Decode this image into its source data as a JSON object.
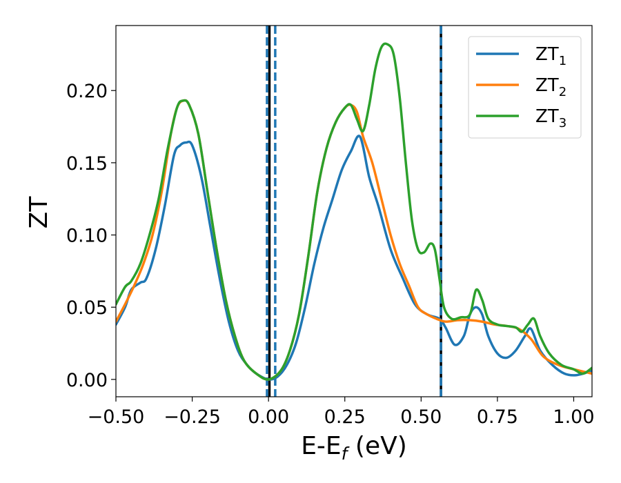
{
  "chart_data": {
    "type": "line",
    "title": "",
    "xlabel": {
      "main": "E-E",
      "sub": "f",
      "unit": " (eV)"
    },
    "ylabel": "ZT",
    "xlim": [
      -0.5,
      1.06
    ],
    "ylim": [
      -0.012,
      0.245
    ],
    "x_ticks": [
      -0.5,
      -0.25,
      0.0,
      0.25,
      0.5,
      0.75,
      1.0
    ],
    "x_tick_labels": [
      "−0.50",
      "−0.25",
      "0.00",
      "0.25",
      "0.50",
      "0.75",
      "1.00"
    ],
    "y_ticks": [
      0.0,
      0.05,
      0.1,
      0.15,
      0.2
    ],
    "y_tick_labels": [
      "0.00",
      "0.05",
      "0.10",
      "0.15",
      "0.20"
    ],
    "grid": false,
    "legend_position": "top-right",
    "series": [
      {
        "name": "ZT",
        "sub": "1",
        "color": "#1f77b4",
        "points": [
          [
            -0.5,
            0.038
          ],
          [
            -0.47,
            0.05
          ],
          [
            -0.45,
            0.062
          ],
          [
            -0.42,
            0.067
          ],
          [
            -0.4,
            0.07
          ],
          [
            -0.37,
            0.09
          ],
          [
            -0.34,
            0.12
          ],
          [
            -0.31,
            0.155
          ],
          [
            -0.29,
            0.162
          ],
          [
            -0.27,
            0.164
          ],
          [
            -0.25,
            0.162
          ],
          [
            -0.22,
            0.14
          ],
          [
            -0.19,
            0.105
          ],
          [
            -0.16,
            0.07
          ],
          [
            -0.13,
            0.04
          ],
          [
            -0.1,
            0.02
          ],
          [
            -0.07,
            0.01
          ],
          [
            -0.04,
            0.004
          ],
          [
            0.0,
            0.0
          ],
          [
            0.03,
            0.002
          ],
          [
            0.06,
            0.01
          ],
          [
            0.09,
            0.025
          ],
          [
            0.12,
            0.05
          ],
          [
            0.15,
            0.08
          ],
          [
            0.18,
            0.105
          ],
          [
            0.21,
            0.125
          ],
          [
            0.24,
            0.145
          ],
          [
            0.27,
            0.158
          ],
          [
            0.3,
            0.168
          ],
          [
            0.33,
            0.14
          ],
          [
            0.36,
            0.12
          ],
          [
            0.4,
            0.09
          ],
          [
            0.44,
            0.07
          ],
          [
            0.48,
            0.052
          ],
          [
            0.52,
            0.045
          ],
          [
            0.56,
            0.042
          ],
          [
            0.58,
            0.036
          ],
          [
            0.61,
            0.024
          ],
          [
            0.64,
            0.03
          ],
          [
            0.66,
            0.045
          ],
          [
            0.68,
            0.05
          ],
          [
            0.7,
            0.045
          ],
          [
            0.72,
            0.03
          ],
          [
            0.75,
            0.018
          ],
          [
            0.78,
            0.015
          ],
          [
            0.81,
            0.02
          ],
          [
            0.84,
            0.03
          ],
          [
            0.86,
            0.035
          ],
          [
            0.89,
            0.02
          ],
          [
            0.93,
            0.01
          ],
          [
            0.97,
            0.004
          ],
          [
            1.01,
            0.003
          ],
          [
            1.06,
            0.006
          ]
        ]
      },
      {
        "name": "ZT",
        "sub": "2",
        "color": "#ff7f0e",
        "points": [
          [
            -0.5,
            0.04
          ],
          [
            -0.47,
            0.052
          ],
          [
            -0.44,
            0.065
          ],
          [
            -0.41,
            0.08
          ],
          [
            -0.38,
            0.1
          ],
          [
            -0.35,
            0.13
          ],
          [
            -0.32,
            0.17
          ],
          [
            -0.3,
            0.188
          ],
          [
            -0.28,
            0.193
          ],
          [
            -0.26,
            0.19
          ],
          [
            -0.23,
            0.17
          ],
          [
            -0.2,
            0.13
          ],
          [
            -0.17,
            0.09
          ],
          [
            -0.14,
            0.055
          ],
          [
            -0.11,
            0.03
          ],
          [
            -0.08,
            0.013
          ],
          [
            -0.04,
            0.004
          ],
          [
            0.0,
            0.0
          ],
          [
            0.04,
            0.006
          ],
          [
            0.07,
            0.02
          ],
          [
            0.1,
            0.045
          ],
          [
            0.13,
            0.085
          ],
          [
            0.16,
            0.13
          ],
          [
            0.19,
            0.16
          ],
          [
            0.22,
            0.178
          ],
          [
            0.25,
            0.188
          ],
          [
            0.27,
            0.19
          ],
          [
            0.29,
            0.185
          ],
          [
            0.31,
            0.168
          ],
          [
            0.34,
            0.15
          ],
          [
            0.37,
            0.125
          ],
          [
            0.4,
            0.1
          ],
          [
            0.43,
            0.08
          ],
          [
            0.46,
            0.065
          ],
          [
            0.49,
            0.05
          ],
          [
            0.52,
            0.045
          ],
          [
            0.55,
            0.042
          ],
          [
            0.58,
            0.04
          ],
          [
            0.62,
            0.041
          ],
          [
            0.66,
            0.041
          ],
          [
            0.7,
            0.04
          ],
          [
            0.74,
            0.038
          ],
          [
            0.78,
            0.037
          ],
          [
            0.82,
            0.035
          ],
          [
            0.86,
            0.028
          ],
          [
            0.9,
            0.016
          ],
          [
            0.95,
            0.01
          ],
          [
            1.0,
            0.007
          ],
          [
            1.06,
            0.004
          ]
        ]
      },
      {
        "name": "ZT",
        "sub": "3",
        "color": "#2ca02c",
        "points": [
          [
            -0.5,
            0.052
          ],
          [
            -0.47,
            0.064
          ],
          [
            -0.45,
            0.068
          ],
          [
            -0.42,
            0.08
          ],
          [
            -0.39,
            0.1
          ],
          [
            -0.36,
            0.125
          ],
          [
            -0.33,
            0.16
          ],
          [
            -0.3,
            0.188
          ],
          [
            -0.28,
            0.193
          ],
          [
            -0.26,
            0.19
          ],
          [
            -0.23,
            0.17
          ],
          [
            -0.2,
            0.13
          ],
          [
            -0.17,
            0.09
          ],
          [
            -0.14,
            0.055
          ],
          [
            -0.11,
            0.03
          ],
          [
            -0.08,
            0.013
          ],
          [
            -0.04,
            0.004
          ],
          [
            0.0,
            0.0
          ],
          [
            0.04,
            0.006
          ],
          [
            0.07,
            0.02
          ],
          [
            0.1,
            0.045
          ],
          [
            0.13,
            0.085
          ],
          [
            0.16,
            0.13
          ],
          [
            0.19,
            0.16
          ],
          [
            0.22,
            0.178
          ],
          [
            0.25,
            0.188
          ],
          [
            0.27,
            0.19
          ],
          [
            0.29,
            0.18
          ],
          [
            0.31,
            0.172
          ],
          [
            0.33,
            0.19
          ],
          [
            0.35,
            0.215
          ],
          [
            0.37,
            0.23
          ],
          [
            0.39,
            0.232
          ],
          [
            0.41,
            0.225
          ],
          [
            0.43,
            0.195
          ],
          [
            0.45,
            0.15
          ],
          [
            0.47,
            0.11
          ],
          [
            0.49,
            0.09
          ],
          [
            0.51,
            0.088
          ],
          [
            0.53,
            0.094
          ],
          [
            0.545,
            0.09
          ],
          [
            0.56,
            0.07
          ],
          [
            0.575,
            0.05
          ],
          [
            0.6,
            0.042
          ],
          [
            0.63,
            0.043
          ],
          [
            0.66,
            0.045
          ],
          [
            0.68,
            0.062
          ],
          [
            0.7,
            0.055
          ],
          [
            0.72,
            0.042
          ],
          [
            0.75,
            0.038
          ],
          [
            0.78,
            0.037
          ],
          [
            0.81,
            0.036
          ],
          [
            0.83,
            0.033
          ],
          [
            0.85,
            0.038
          ],
          [
            0.87,
            0.042
          ],
          [
            0.89,
            0.03
          ],
          [
            0.92,
            0.018
          ],
          [
            0.96,
            0.01
          ],
          [
            1.0,
            0.007
          ],
          [
            1.03,
            0.004
          ],
          [
            1.06,
            0.008
          ]
        ]
      }
    ],
    "vertical_lines": [
      {
        "x": -0.005,
        "style": "dashed",
        "color": "#1f77b4"
      },
      {
        "x": 0.022,
        "style": "dashed",
        "color": "#1f77b4"
      },
      {
        "x": 0.003,
        "style": "solid",
        "color": "#000000"
      },
      {
        "x": 0.565,
        "style": "solid",
        "color": "#000000"
      },
      {
        "x": 0.565,
        "style": "dashed",
        "color": "#1f77b4"
      }
    ]
  }
}
